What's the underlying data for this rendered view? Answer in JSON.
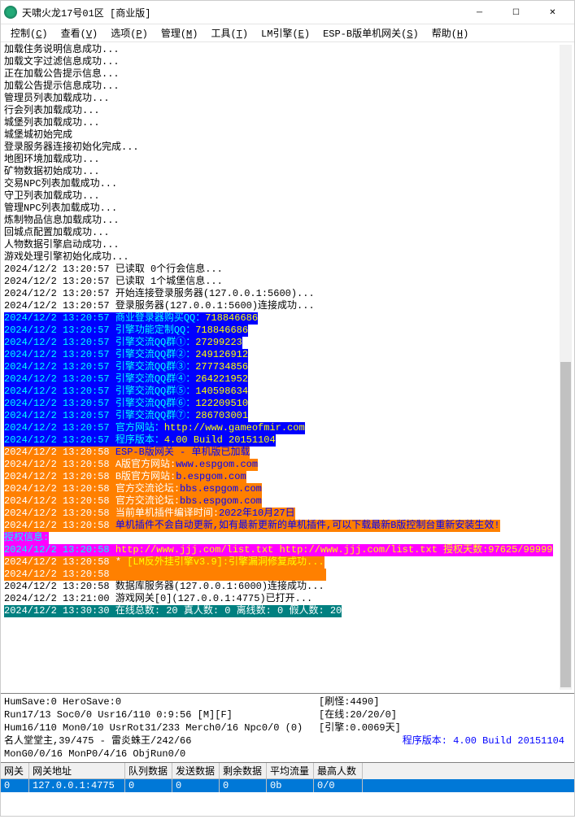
{
  "window": {
    "title": "天啸火龙17号01区 [商业版]"
  },
  "menu": {
    "items": [
      {
        "label": "控制",
        "key": "C"
      },
      {
        "label": "查看",
        "key": "V"
      },
      {
        "label": "选项",
        "key": "P"
      },
      {
        "label": "管理",
        "key": "M"
      },
      {
        "label": "工具",
        "key": "T"
      },
      {
        "label": "LM引擎",
        "key": "E"
      },
      {
        "label": "ESP-B版单机网关",
        "key": "S"
      },
      {
        "label": "帮助",
        "key": "H"
      }
    ]
  },
  "log": {
    "lines": [
      {
        "cls": "",
        "t": "加载住务说明信息成功..."
      },
      {
        "cls": "",
        "t": "加载文字过滤信息成功..."
      },
      {
        "cls": "",
        "t": "正在加载公告提示信息..."
      },
      {
        "cls": "",
        "t": "加载公告提示信息成功..."
      },
      {
        "cls": "",
        "t": "管理员列表加载成功..."
      },
      {
        "cls": "",
        "t": "行会列表加载成功..."
      },
      {
        "cls": "",
        "t": "城堡列表加载成功..."
      },
      {
        "cls": "",
        "t": "城堡城初始完成"
      },
      {
        "cls": "",
        "t": "登录服务器连接初始化完成..."
      },
      {
        "cls": "",
        "t": "地图环境加载成功..."
      },
      {
        "cls": "",
        "t": "矿物数据初始成功..."
      },
      {
        "cls": "",
        "t": "交易NPC列表加载成功..."
      },
      {
        "cls": "",
        "t": "守卫列表加载成功..."
      },
      {
        "cls": "",
        "t": "管理NPC列表加载成功..."
      },
      {
        "cls": "",
        "t": "炼制物品信息加载成功..."
      },
      {
        "cls": "",
        "t": "回城点配置加载成功..."
      },
      {
        "cls": "",
        "t": "人物数据引擎启动成功..."
      },
      {
        "cls": "",
        "t": "游戏处理引擎初始化成功..."
      },
      {
        "cls": "",
        "t": "2024/12/2 13:20:57 已读取 0个行会信息..."
      },
      {
        "cls": "",
        "t": "2024/12/2 13:20:57 已读取 1个城堡信息..."
      },
      {
        "cls": "",
        "t": "2024/12/2 13:20:57 开始连接登录服务器(127.0.0.1:5600)..."
      },
      {
        "cls": "",
        "t": "2024/12/2 13:20:57 登录服务器(127.0.0.1:5600)连接成功..."
      },
      {
        "cls": "blue",
        "t": "2024/12/2 13:20:57 商业登录器购买QQ：",
        "y": "718846686"
      },
      {
        "cls": "blue",
        "t": "2024/12/2 13:20:57 引擎功能定制QQ：",
        "y": "718846686"
      },
      {
        "cls": "blue",
        "t": "2024/12/2 13:20:57 引擎交流QQ群①：",
        "y": "27299223"
      },
      {
        "cls": "blue",
        "t": "2024/12/2 13:20:57 引擎交流QQ群②：",
        "y": "249126912"
      },
      {
        "cls": "blue",
        "t": "2024/12/2 13:20:57 引擎交流QQ群③：",
        "y": "277734856"
      },
      {
        "cls": "blue",
        "t": "2024/12/2 13:20:57 引擎交流QQ群④：",
        "y": "264221952"
      },
      {
        "cls": "blue",
        "t": "2024/12/2 13:20:57 引擎交流QQ群⑤：",
        "y": "140598634"
      },
      {
        "cls": "blue",
        "t": "2024/12/2 13:20:57 引擎交流QQ群⑥：",
        "y": "122209510"
      },
      {
        "cls": "blue",
        "t": "2024/12/2 13:20:57 引擎交流QQ群⑦：",
        "y": "286703001"
      },
      {
        "cls": "blue",
        "t": "2024/12/2 13:20:57 官方网站：",
        "y": "http://www.gameofmir.com"
      },
      {
        "cls": "blue",
        "t": "2024/12/2 13:20:57 程序版本：",
        "y": "4.00 Build 20151104"
      },
      {
        "cls": "orange",
        "t": "2024/12/2 13:20:58 ",
        "b": "ESP-B版网关 - 单机版已加载"
      },
      {
        "cls": "orange",
        "t": "2024/12/2 13:20:58 A版官方网站:",
        "b": "www.espgom.com"
      },
      {
        "cls": "orange",
        "t": "2024/12/2 13:20:58 B版官方网站:",
        "b": "b.espgom.com"
      },
      {
        "cls": "orange",
        "t": "2024/12/2 13:20:58 官方交流论坛:",
        "b": "bbs.espgom.com"
      },
      {
        "cls": "orange",
        "t": "2024/12/2 13:20:58 官方交流论坛:",
        "b": "bbs.espgom.com"
      },
      {
        "cls": "orange",
        "t": "2024/12/2 13:20:58 当前单机插件编译时间:",
        "b": "2022年10月27日"
      },
      {
        "cls": "orange",
        "t": "2024/12/2 13:20:58 ",
        "b": "单机插件不会自动更新,如有最新更新的单机插件,可以下载最新B版控制台重新安装生效!"
      },
      {
        "cls": "pink",
        "t": "授权信息:"
      },
      {
        "cls": "pink",
        "t": "2024/12/2 13:20:58 ",
        "y": "http://www.jjj.com/list.txt http://www.jjj.com/list.txt 授权天数:97625/99999"
      },
      {
        "cls": "orange2",
        "t": "2024/12/2 13:20:58 * ",
        "y": "[LM反外挂引擎v3.9]:引擎漏洞修复成功..."
      },
      {
        "cls": "orange2",
        "t": "2024/12/2 13:20:58                                     "
      },
      {
        "cls": "",
        "t": "2024/12/2 13:20:58 数据库服务器(127.0.0.1:6000)连接成功..."
      },
      {
        "cls": "",
        "t": "2024/12/2 13:21:00 游戏网关[0](127.0.0.1:4775)已打开..."
      },
      {
        "cls": "teal",
        "t": "2024/12/2 13:30:30 在线总数: 20 真人数: 0 离线数: 0 假人数: 20"
      }
    ]
  },
  "status": {
    "left": [
      "HumSave:0 HeroSave:0",
      "Run17/13 Soc0/0 Usr16/110              0:9:56 [M][F]",
      "Hum16/110 Mon0/10 UsrRot31/233 Merch0/16 Npc0/0 (0)",
      "名人堂堂主,39/475 - 雷炎蛛王/242/66",
      "MonG0/0/16 MonP0/4/16 ObjRun0/0"
    ],
    "right": [
      "[刷怪:4490]",
      "[在线:20/20/0]",
      "[引擎:0.0069天]"
    ],
    "version": "程序版本: 4.00 Build 20151104"
  },
  "grid": {
    "columns": [
      "网关",
      "网关地址",
      "队列数据",
      "发送数据",
      "剩余数据",
      "平均流量",
      "最高人数"
    ],
    "row": [
      "0",
      "127.0.0.1:4775",
      "0",
      "0",
      "0",
      "0b",
      "0/0"
    ]
  },
  "colors": {
    "blue_bg": "#0000ff",
    "cyan": "#00ffff",
    "yellow": "#ffff00",
    "orange_bg": "#ff8000",
    "white": "#ffffff",
    "blue_txt": "#0000ff",
    "pink_bg": "#ff00ff",
    "teal_bg": "#008080",
    "sel_bg": "#0078d7"
  }
}
